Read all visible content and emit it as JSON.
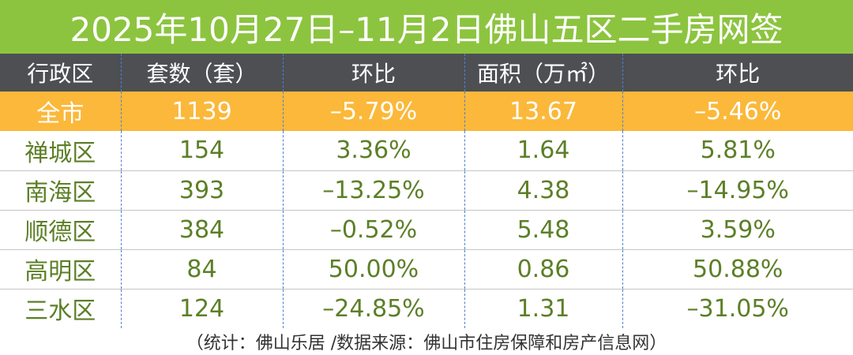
{
  "title": "2025年10月27日–11月2日佛山五区二手房网签",
  "headers": [
    "行政区",
    "套数（套）",
    "环比",
    "面积（万㎡）",
    "环比"
  ],
  "rows": [
    {
      "district": "全市",
      "units": "1139",
      "units_mom": "–5.79%",
      "area": "13.67",
      "area_mom": "–5.46%"
    },
    {
      "district": "禅城区",
      "units": "154",
      "units_mom": "3.36%",
      "area": "1.64",
      "area_mom": "5.81%"
    },
    {
      "district": "南海区",
      "units": "393",
      "units_mom": "–13.25%",
      "area": "4.38",
      "area_mom": "–14.95%"
    },
    {
      "district": "顺德区",
      "units": "384",
      "units_mom": "–0.52%",
      "area": "5.48",
      "area_mom": "3.59%"
    },
    {
      "district": "高明区",
      "units": "84",
      "units_mom": "50.00%",
      "area": "0.86",
      "area_mom": "50.88%"
    },
    {
      "district": "三水区",
      "units": "124",
      "units_mom": "–24.85%",
      "area": "1.31",
      "area_mom": "–31.05%"
    }
  ],
  "footer": "（统计：佛山乐居 /数据来源：佛山市住房保障和房产信息网）",
  "colors": {
    "title_bg": "#8cc43f",
    "header_bg": "#4d4f53",
    "total_bg": "#fbb83a",
    "value_text": "#5c7f27",
    "divider": "#4f7fd1"
  }
}
